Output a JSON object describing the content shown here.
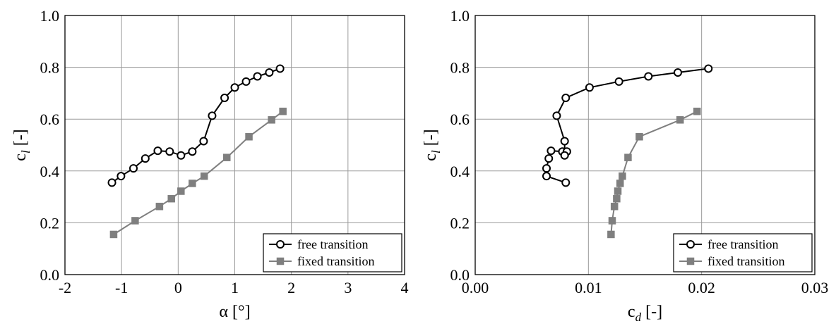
{
  "chart_data": [
    {
      "type": "line",
      "xlim": [
        -2,
        4
      ],
      "ylim": [
        0,
        1
      ],
      "xticks": [
        "-2",
        "-1",
        "0",
        "1",
        "2",
        "3",
        "4"
      ],
      "yticks": [
        "0.0",
        "0.2",
        "0.4",
        "0.6",
        "0.8",
        "1.0"
      ],
      "xlabel": {
        "main": "α [°]",
        "sub": ""
      },
      "ylabel": {
        "main": "c",
        "sub": "l",
        "suffix": " [-]"
      },
      "grid": true,
      "legend_position": "bottom-right",
      "series": [
        {
          "name": "free transition",
          "color": "#000000",
          "marker": "open-circle",
          "x": [
            -1.17,
            -1.01,
            -0.79,
            -0.58,
            -0.36,
            -0.15,
            0.05,
            0.25,
            0.45,
            0.6,
            0.82,
            1.0,
            1.2,
            1.4,
            1.61,
            1.8
          ],
          "y": [
            0.355,
            0.38,
            0.41,
            0.448,
            0.478,
            0.475,
            0.46,
            0.475,
            0.515,
            0.613,
            0.682,
            0.722,
            0.745,
            0.765,
            0.78,
            0.795
          ]
        },
        {
          "name": "fixed transition",
          "color": "#7f7f7f",
          "marker": "filled-square",
          "x": [
            -1.14,
            -0.76,
            -0.33,
            -0.12,
            0.05,
            0.25,
            0.46,
            0.86,
            1.25,
            1.65,
            1.85
          ],
          "y": [
            0.155,
            0.208,
            0.263,
            0.293,
            0.322,
            0.352,
            0.38,
            0.452,
            0.532,
            0.597,
            0.63
          ]
        }
      ]
    },
    {
      "type": "line",
      "xlim": [
        0,
        0.03
      ],
      "ylim": [
        0,
        1
      ],
      "xticks": [
        "0.00",
        "0.01",
        "0.02",
        "0.03"
      ],
      "yticks": [
        "0.0",
        "0.2",
        "0.4",
        "0.6",
        "0.8",
        "1.0"
      ],
      "xlabel": {
        "main": "c",
        "sub": "d",
        "suffix": " [-]"
      },
      "ylabel": {
        "main": "c",
        "sub": "l",
        "suffix": " [-]"
      },
      "grid": true,
      "legend_position": "bottom-right",
      "series": [
        {
          "name": "free transition",
          "color": "#000000",
          "marker": "open-circle",
          "x": [
            0.008,
            0.0063,
            0.0063,
            0.0065,
            0.0067,
            0.0077,
            0.0081,
            0.0079,
            0.0079,
            0.0072,
            0.008,
            0.0101,
            0.0127,
            0.0153,
            0.0179,
            0.0206
          ],
          "y": [
            0.355,
            0.38,
            0.41,
            0.448,
            0.478,
            0.475,
            0.475,
            0.46,
            0.515,
            0.613,
            0.682,
            0.722,
            0.745,
            0.765,
            0.78,
            0.795
          ]
        },
        {
          "name": "fixed transition",
          "color": "#7f7f7f",
          "marker": "filled-square",
          "x": [
            0.012,
            0.0121,
            0.0123,
            0.0125,
            0.0126,
            0.0128,
            0.013,
            0.0135,
            0.0145,
            0.0181,
            0.0196
          ],
          "y": [
            0.155,
            0.208,
            0.263,
            0.293,
            0.322,
            0.352,
            0.38,
            0.452,
            0.532,
            0.597,
            0.63
          ]
        }
      ]
    }
  ]
}
